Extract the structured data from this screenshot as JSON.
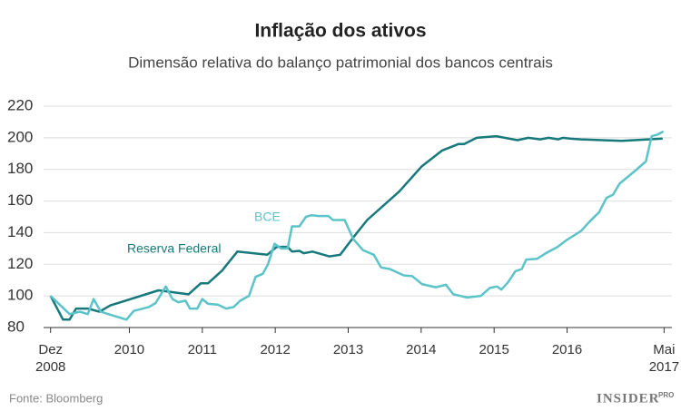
{
  "chart_data": {
    "type": "line",
    "title": "Inflação dos ativos",
    "subtitle": "Dimensão relativa do balanço patrimonial dos bancos centrais",
    "source": "Fonte: Bloomberg",
    "logo": "INSIDER",
    "logo_sup": "PRO",
    "xlim": [
      2008.6,
      2017.4
    ],
    "xticks": [
      {
        "value": 2008.92,
        "label": "Dez\n2008"
      },
      2010,
      2011,
      2012,
      2013,
      2014,
      2015,
      2016,
      {
        "value": 2017.33,
        "label": "Mai\n2017"
      }
    ],
    "ylim": [
      80,
      220
    ],
    "yticks": [
      80,
      100,
      120,
      140,
      160,
      180,
      200,
      220
    ],
    "grid": true,
    "series": [
      {
        "name": "Reserva Federal",
        "color": "#17797c",
        "x": [
          2008.92,
          2009.09,
          2009.18,
          2009.27,
          2009.43,
          2009.59,
          2009.74,
          2010.4,
          2010.81,
          2010.98,
          2011.08,
          2011.27,
          2011.48,
          2011.89,
          2012.02,
          2012.17,
          2012.23,
          2012.33,
          2012.39,
          2012.51,
          2012.74,
          2012.89,
          2013.07,
          2013.26,
          2013.7,
          2014.01,
          2014.29,
          2014.51,
          2014.59,
          2014.76,
          2015.03,
          2015.32,
          2015.47,
          2015.63,
          2015.75,
          2015.88,
          2015.94,
          2016.04,
          2016.19,
          2016.75,
          2017.31
        ],
        "values": [
          100,
          85,
          85,
          92,
          92,
          90,
          94,
          103.5,
          101,
          108,
          108,
          116,
          128,
          126,
          131,
          131,
          128,
          128.5,
          127,
          128,
          125,
          126,
          137,
          148,
          166,
          182,
          192,
          196,
          196,
          200,
          201,
          198.5,
          200,
          199,
          200,
          199,
          200,
          199.5,
          199,
          198,
          199.5
        ]
      },
      {
        "name": "BCE",
        "color": "#5cc3c9",
        "x": [
          2008.92,
          2009.18,
          2009.32,
          2009.43,
          2009.51,
          2009.61,
          2009.71,
          2009.96,
          2010.06,
          2010.27,
          2010.36,
          2010.5,
          2010.59,
          2010.67,
          2010.77,
          2010.83,
          2010.93,
          2011.0,
          2011.08,
          2011.21,
          2011.33,
          2011.43,
          2011.52,
          2011.64,
          2011.73,
          2011.83,
          2011.9,
          2011.99,
          2012.08,
          2012.17,
          2012.23,
          2012.33,
          2012.42,
          2012.49,
          2012.6,
          2012.73,
          2012.79,
          2012.95,
          2013.07,
          2013.2,
          2013.35,
          2013.45,
          2013.57,
          2013.76,
          2013.88,
          2014.01,
          2014.2,
          2014.34,
          2014.44,
          2014.63,
          2014.82,
          2014.94,
          2015.04,
          2015.1,
          2015.19,
          2015.29,
          2015.38,
          2015.44,
          2015.59,
          2015.71,
          2015.87,
          2016.0,
          2016.19,
          2016.31,
          2016.44,
          2016.54,
          2016.63,
          2016.72,
          2016.93,
          2017.08,
          2017.16,
          2017.24,
          2017.32
        ],
        "values": [
          100,
          88.5,
          90,
          88.5,
          98,
          90,
          88.5,
          85,
          90.5,
          93,
          95.5,
          106,
          98,
          96,
          97,
          92,
          92,
          98,
          95,
          94.5,
          92,
          93,
          97,
          100,
          112,
          114,
          120,
          133,
          130,
          130,
          144,
          144,
          150,
          151,
          150.5,
          150.5,
          148,
          148,
          136,
          129,
          126,
          118,
          117,
          113,
          112.5,
          107.5,
          105.5,
          107,
          101,
          99,
          100,
          105,
          106,
          104,
          108.5,
          115.5,
          117,
          123,
          123.5,
          127,
          131,
          135.5,
          141,
          147,
          153,
          162,
          164,
          171,
          179,
          185,
          201,
          202,
          204
        ]
      }
    ]
  }
}
